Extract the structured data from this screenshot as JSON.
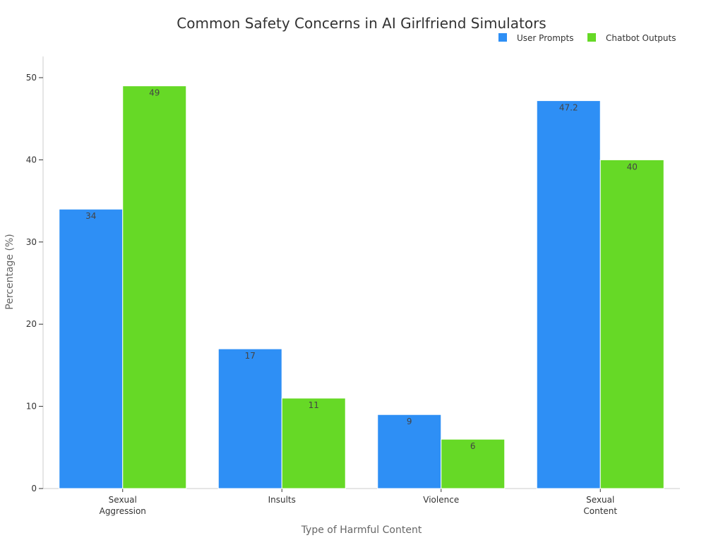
{
  "chart_data": {
    "type": "bar",
    "title": "Common Safety Concerns in AI Girlfriend Simulators",
    "xlabel": "Type of Harmful Content",
    "ylabel": "Percentage (%)",
    "categories": [
      "Sexual\nAggression",
      "Insults",
      "Violence",
      "Sexual\nContent"
    ],
    "series": [
      {
        "name": "User Prompts",
        "color": "#2e8ff5",
        "values": [
          34,
          17,
          9,
          47.2
        ]
      },
      {
        "name": "Chatbot Outputs",
        "color": "#66d926",
        "values": [
          49,
          11,
          6,
          40
        ]
      }
    ],
    "ylim": [
      0,
      50
    ],
    "yticks": [
      0,
      10,
      20,
      30,
      40,
      50
    ],
    "grid": false,
    "legend_position": "top-right",
    "data_labels": true
  }
}
